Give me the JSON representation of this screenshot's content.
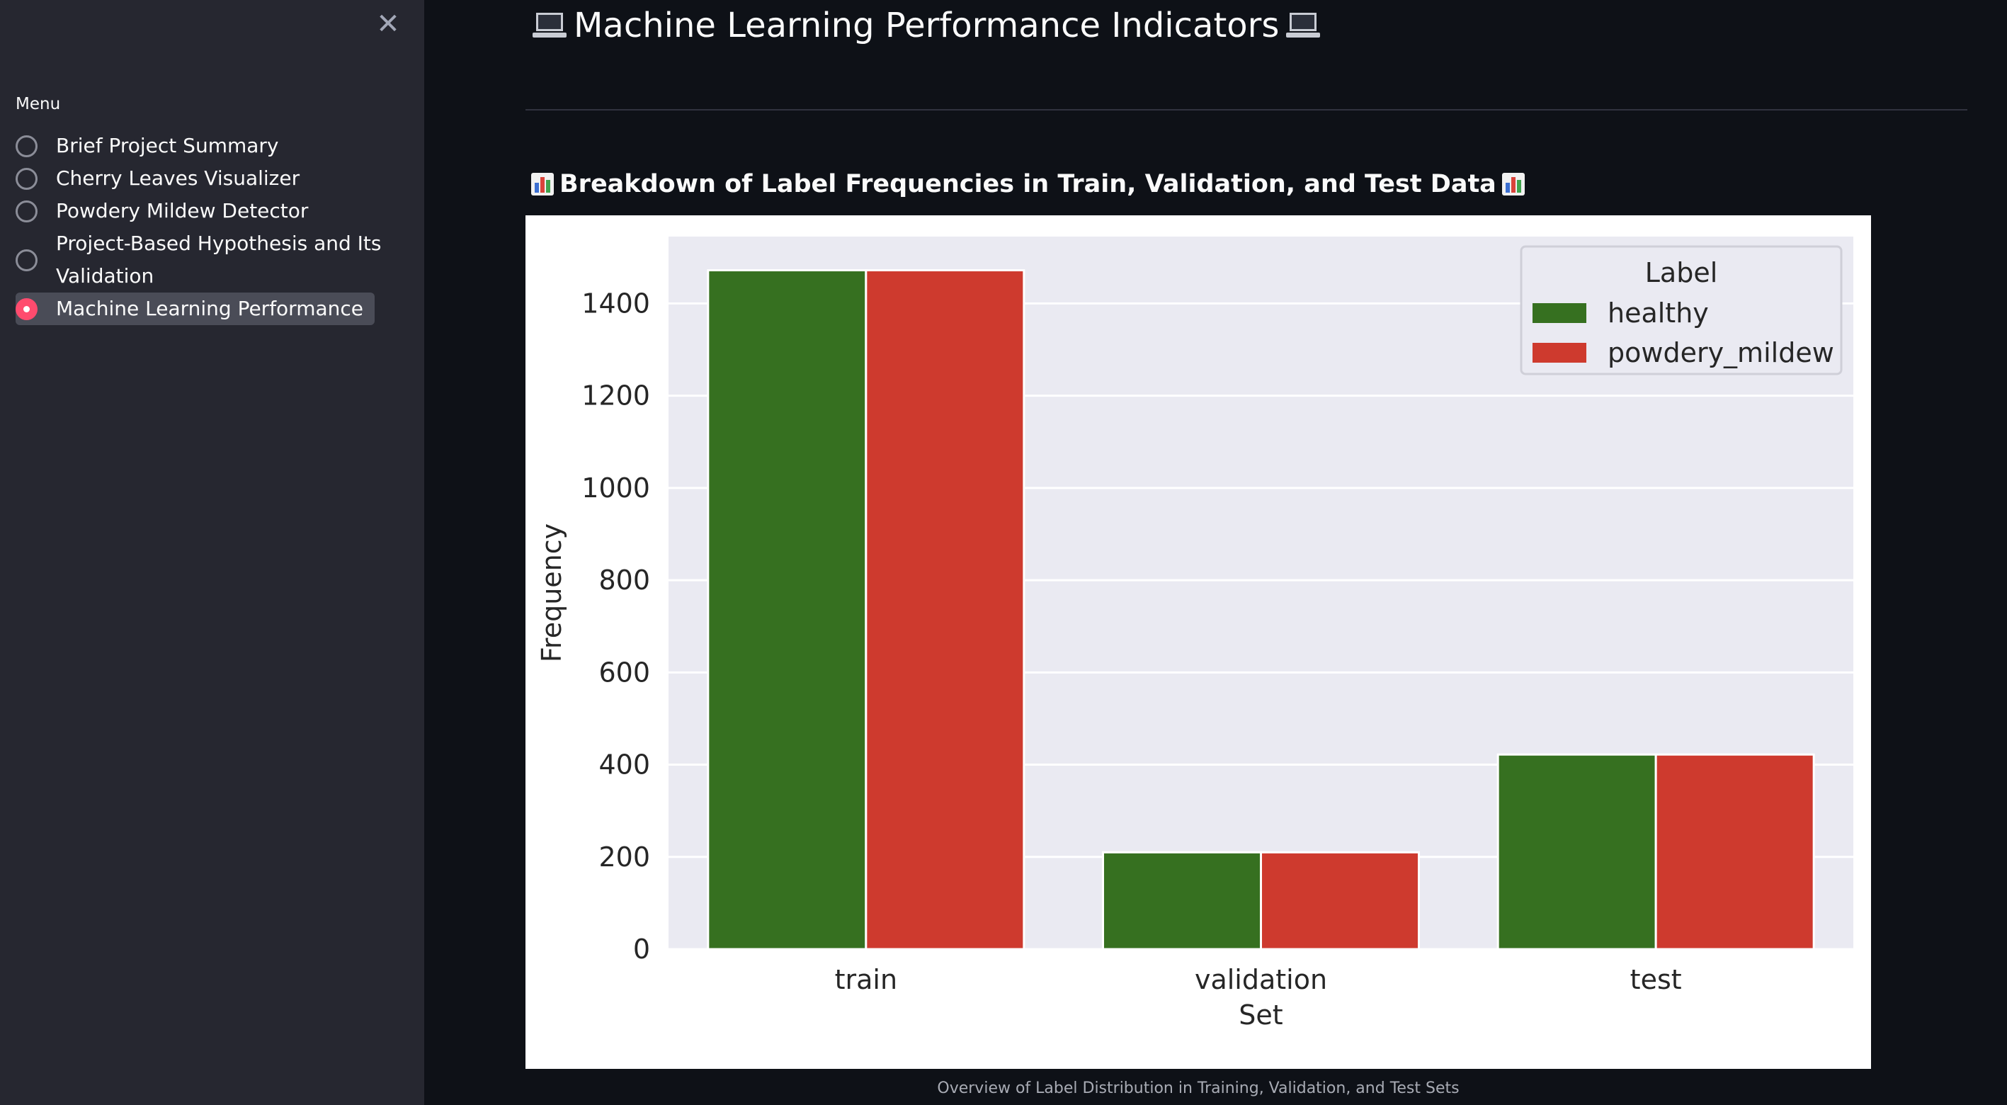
{
  "sidebar": {
    "close_label": "✕",
    "menu_label": "Menu",
    "items": [
      {
        "label": "Brief Project Summary",
        "selected": false
      },
      {
        "label": "Cherry Leaves Visualizer",
        "selected": false
      },
      {
        "label": "Powdery Mildew Detector",
        "selected": false
      },
      {
        "label": "Project-Based Hypothesis and Its",
        "label_line2": "Validation",
        "selected": false
      },
      {
        "label": "Machine Learning Performance",
        "selected": true
      }
    ]
  },
  "main": {
    "title": "Machine Learning Performance Indicators",
    "title_icon": "laptop-icon",
    "section_title": "Breakdown of Label Frequencies in Train, Validation, and Test Data",
    "section_icon": "bar-chart-icon",
    "caption": "Overview of Label Distribution in Training, Validation, and Test Sets"
  },
  "colors": {
    "accent": "#ff4b6e",
    "healthy": "#367020",
    "powdery_mildew": "#ce3a2e",
    "plot_bg": "#eaeaf2"
  },
  "chart_data": {
    "type": "bar",
    "categories": [
      "train",
      "validation",
      "test"
    ],
    "series": [
      {
        "name": "healthy",
        "values": [
          1472,
          210,
          422
        ]
      },
      {
        "name": "powdery_mildew",
        "values": [
          1472,
          210,
          422
        ]
      }
    ],
    "xlabel": "Set",
    "ylabel": "Frequency",
    "ylim": [
      0,
      1545
    ],
    "yticks": [
      0,
      200,
      400,
      600,
      800,
      1000,
      1200,
      1400
    ],
    "legend_title": "Label",
    "legend_position": "top-right",
    "grid": true
  }
}
